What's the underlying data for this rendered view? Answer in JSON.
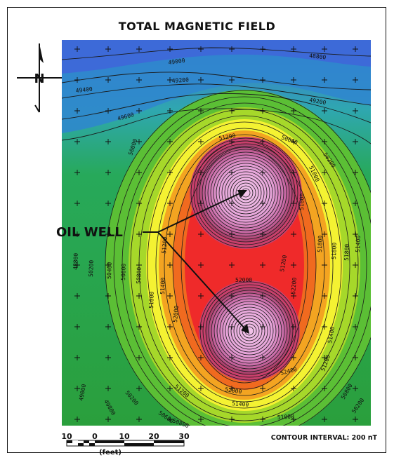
{
  "title": "TOTAL MAGNETIC FIELD",
  "north_label": "N",
  "annotation": {
    "oil_well_label": "OIL WELL"
  },
  "contour_interval_label": "CONTOUR INTERVAL: 200 nT",
  "scale_bar": {
    "ticks": [
      "10",
      "0",
      "10",
      "20",
      "30"
    ],
    "unit": "(feet)"
  },
  "contour_labels": [
    "48800",
    "49000",
    "49200",
    "49400",
    "49600",
    "49800",
    "50000",
    "50200",
    "50400",
    "50600",
    "50800",
    "51000",
    "51200",
    "51400",
    "51600",
    "51800",
    "52000",
    "52200",
    "52400",
    "52600",
    "52800"
  ],
  "colors": {
    "low": "#2a6fd6",
    "teal": "#2fa7b0",
    "green": "#27a83a",
    "lime": "#a6d82a",
    "yellow": "#f4f232",
    "orange": "#f3a421",
    "red": "#ef2a2a",
    "magenta": "#b7487f",
    "pink": "#e7a4d9"
  }
}
